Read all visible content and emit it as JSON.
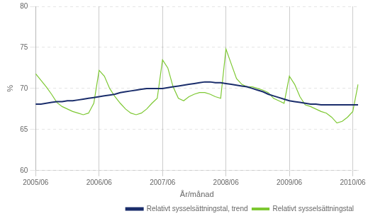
{
  "chart_data": {
    "type": "line",
    "x_label": "År/månad",
    "y_label": "%",
    "categories": [
      "2005/06",
      null,
      null,
      null,
      null,
      null,
      null,
      null,
      null,
      null,
      null,
      null,
      "2006/06",
      null,
      null,
      null,
      null,
      null,
      null,
      null,
      null,
      null,
      null,
      null,
      "2007/06",
      null,
      null,
      null,
      null,
      null,
      null,
      null,
      null,
      null,
      null,
      null,
      "2008/06",
      null,
      null,
      null,
      null,
      null,
      null,
      null,
      null,
      null,
      null,
      null,
      "2009/06",
      null,
      null,
      null,
      null,
      null,
      null,
      null,
      null,
      null,
      null,
      null,
      "2010/06",
      null
    ],
    "series": [
      {
        "name": "Relativt sysselsättningstal",
        "color": "#7dc832",
        "values": [
          71.8,
          71.0,
          70.2,
          69.3,
          68.3,
          67.8,
          67.5,
          67.2,
          67.0,
          66.8,
          67.0,
          68.2,
          72.2,
          71.5,
          70.0,
          69.0,
          68.2,
          67.5,
          67.0,
          66.8,
          67.0,
          67.5,
          68.2,
          68.8,
          73.5,
          72.5,
          70.2,
          68.8,
          68.5,
          69.0,
          69.3,
          69.5,
          69.5,
          69.3,
          69.0,
          68.8,
          74.8,
          73.0,
          71.2,
          70.5,
          70.2,
          70.2,
          70.0,
          69.8,
          69.5,
          68.8,
          68.5,
          68.2,
          71.5,
          70.5,
          69.0,
          68.0,
          67.8,
          67.5,
          67.2,
          67.0,
          66.5,
          65.8,
          66.0,
          66.5,
          67.2,
          70.5
        ]
      },
      {
        "name": "Relativt sysselsättningstal, trend",
        "color": "#1a2d6b",
        "values": [
          68.1,
          68.1,
          68.2,
          68.3,
          68.4,
          68.4,
          68.5,
          68.5,
          68.6,
          68.7,
          68.8,
          68.9,
          69.0,
          69.1,
          69.2,
          69.3,
          69.5,
          69.6,
          69.7,
          69.8,
          69.9,
          70.0,
          70.0,
          70.0,
          70.0,
          70.1,
          70.2,
          70.3,
          70.4,
          70.5,
          70.6,
          70.7,
          70.8,
          70.8,
          70.7,
          70.7,
          70.6,
          70.5,
          70.4,
          70.3,
          70.2,
          70.0,
          69.8,
          69.6,
          69.3,
          69.1,
          68.9,
          68.7,
          68.5,
          68.4,
          68.3,
          68.2,
          68.1,
          68.1,
          68.0,
          68.0,
          68.0,
          68.0,
          68.0,
          68.0,
          68.0,
          68.0
        ]
      }
    ],
    "ylim": [
      60,
      80
    ],
    "yticks": [
      60,
      65,
      70,
      75,
      80
    ],
    "grid": true,
    "legend": "lower right"
  }
}
